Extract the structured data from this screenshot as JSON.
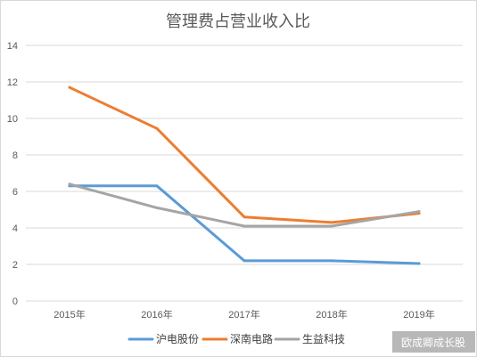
{
  "chart_data": {
    "type": "line",
    "title": "管理费占营业收入比",
    "xlabel": "",
    "ylabel": "",
    "categories": [
      "2015年",
      "2016年",
      "2017年",
      "2018年",
      "2019年"
    ],
    "ylim": [
      0,
      14
    ],
    "yticks": [
      0,
      2,
      4,
      6,
      8,
      10,
      12,
      14
    ],
    "grid": true,
    "legend_position": "bottom",
    "series": [
      {
        "name": "沪电股份",
        "color": "#5b9bd5",
        "values": [
          6.3,
          6.3,
          2.2,
          2.2,
          2.05
        ]
      },
      {
        "name": "深南电路",
        "color": "#ed7d31",
        "values": [
          11.7,
          9.45,
          4.6,
          4.3,
          4.8
        ]
      },
      {
        "name": "生益科技",
        "color": "#a5a5a5",
        "values": [
          6.4,
          5.1,
          4.1,
          4.1,
          4.9
        ]
      }
    ]
  },
  "watermark": "欧成卿成长股"
}
